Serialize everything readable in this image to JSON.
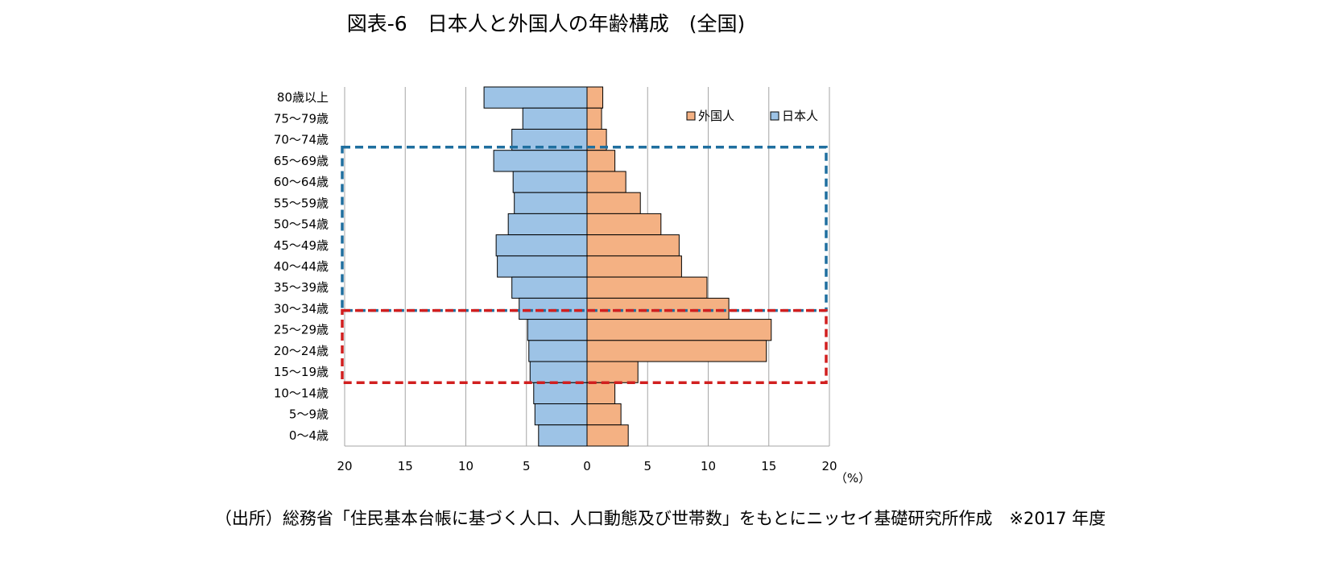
{
  "chart_data": {
    "type": "bar",
    "title": "図表-6　日本人と外国人の年齢構成　(全国)",
    "unit_label": "（%）",
    "categories": [
      "80歳以上",
      "75～79歳",
      "70～74歳",
      "65～69歳",
      "60～64歳",
      "55～59歳",
      "50～54歳",
      "45～49歳",
      "40～44歳",
      "35～39歳",
      "30～34歳",
      "25～29歳",
      "20～24歳",
      "15～19歳",
      "10～14歳",
      "5～9歳",
      "0～4歳"
    ],
    "series": [
      {
        "name": "外国人",
        "color": "#F4B183",
        "side": "right",
        "values": [
          1.3,
          1.2,
          1.6,
          2.3,
          3.2,
          4.4,
          6.1,
          7.6,
          7.8,
          9.9,
          11.7,
          15.2,
          14.8,
          4.2,
          2.3,
          2.8,
          3.4
        ]
      },
      {
        "name": "日本人",
        "color": "#9DC3E6",
        "side": "left",
        "values": [
          8.5,
          5.3,
          6.2,
          7.7,
          6.1,
          6.0,
          6.5,
          7.5,
          7.4,
          6.2,
          5.6,
          4.9,
          4.8,
          4.7,
          4.4,
          4.3,
          4.0
        ]
      }
    ],
    "x_ticks": [
      20,
      15,
      10,
      5,
      0,
      5,
      10,
      15,
      20
    ],
    "xlim": [
      -20,
      20
    ],
    "grid": true,
    "legend_position": "top-right",
    "highlights": [
      {
        "from": "65～69歳",
        "to": "30～34歳",
        "color": "#1F6F9F",
        "style": "dashed"
      },
      {
        "from": "30～34歳",
        "to": "15～19歳",
        "color": "#D11F1F",
        "style": "dashed"
      }
    ]
  },
  "source_note": "（出所）総務省「住民基本台帳に基づく人口、人口動態及び世帯数」をもとにニッセイ基礎研究所作成　※2017 年度"
}
